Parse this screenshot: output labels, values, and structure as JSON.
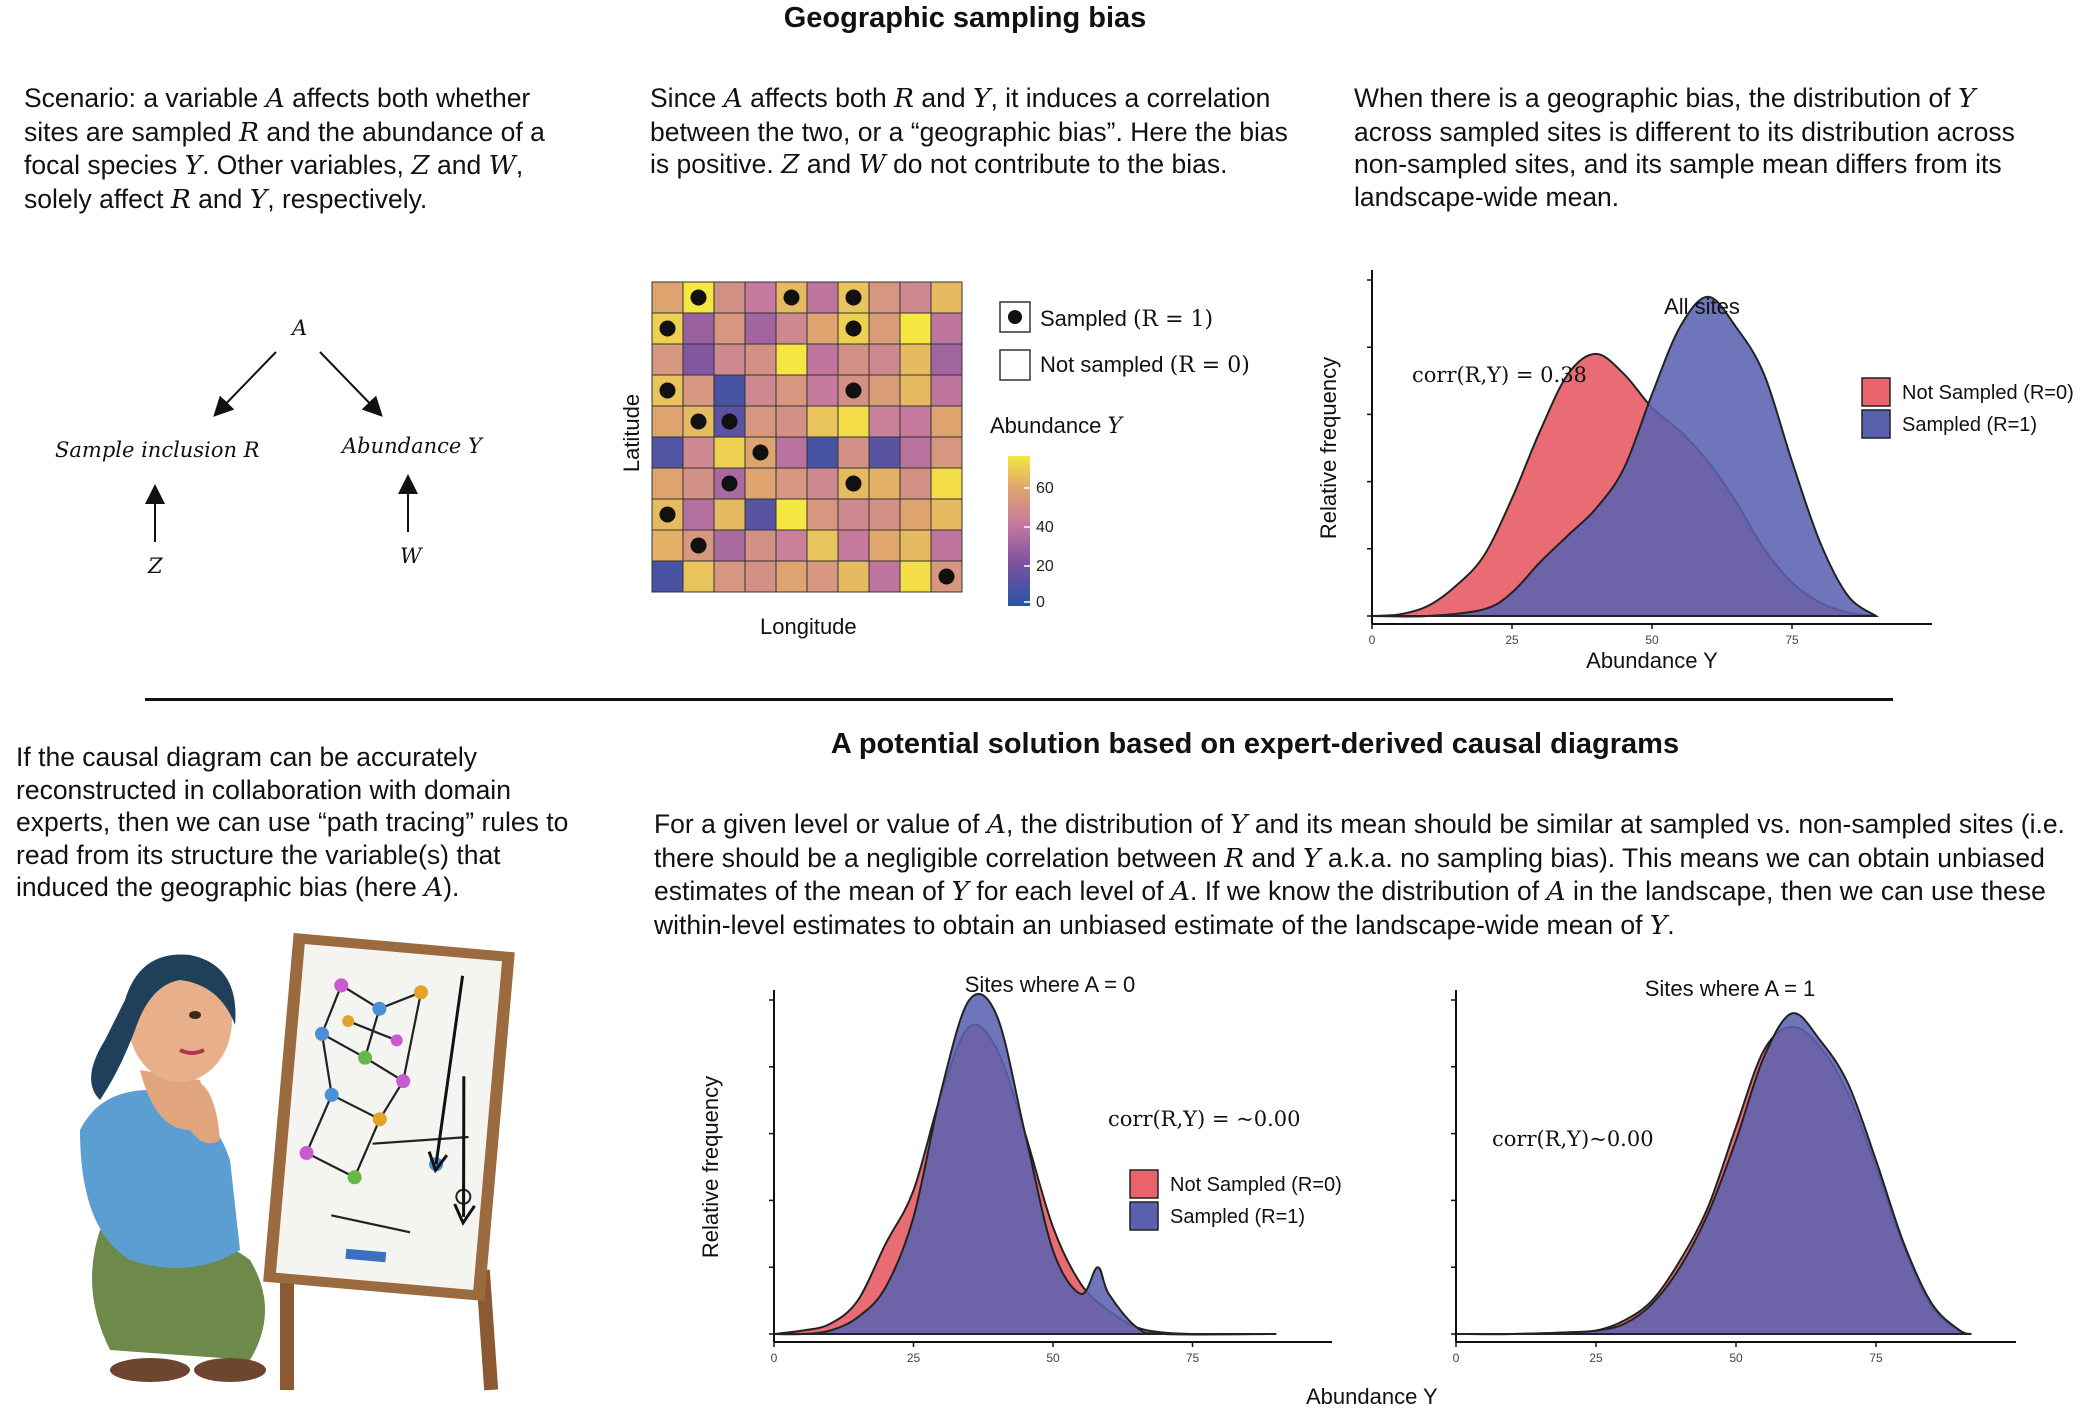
{
  "title": "Geographic sampling bias",
  "text_top_left_parts": [
    "Scenario: a variable ",
    "A",
    " affects both whether sites are sampled ",
    "R",
    " and the abundance of a focal species ",
    "Y",
    ". Other variables, ",
    "Z",
    " and ",
    "W",
    ", solely affect ",
    "R",
    " and ",
    "Y",
    ", respectively."
  ],
  "text_top_middle_parts": [
    "Since ",
    "A",
    " affects both ",
    "R",
    " and ",
    "Y",
    ", it induces a correlation between the two, or a “geographic bias”. Here the bias is positive. ",
    "Z",
    " and ",
    "W",
    " do not contribute to the bias."
  ],
  "text_top_right_parts": [
    "When there is a geographic bias, the distribution of ",
    "Y",
    " across sampled sites is different to its distribution across non-sampled sites, and its sample mean differs from its landscape-wide mean."
  ],
  "dag": {
    "node_a": "A",
    "node_r": "Sample inclusion R",
    "node_y": "Abundance Y",
    "node_z": "Z",
    "node_w": "W"
  },
  "grid_map": {
    "xlabel": "Longitude",
    "ylabel": "Latitude",
    "legend_sampled": "Sampled (R = 1)",
    "legend_not_sampled": "Not sampled (R = 0)",
    "colorbar_title": "Abundance Y",
    "colorbar_ticks": [
      "60",
      "40",
      "20",
      "0"
    ],
    "colors": [
      "#d9aa72",
      "#f2e23e",
      "#dca273",
      "#cc8f88",
      "#e8b05f",
      "#d9aa72",
      "#e3ba62",
      "#f2d655",
      "#e3ae6e",
      "#d9aa72"
    ],
    "cells": [
      [
        55,
        72,
        48,
        40,
        60,
        38,
        62,
        50,
        45,
        60
      ],
      [
        65,
        28,
        50,
        30,
        45,
        55,
        65,
        52,
        70,
        38
      ],
      [
        50,
        22,
        45,
        48,
        72,
        38,
        48,
        45,
        60,
        30
      ],
      [
        62,
        50,
        8,
        45,
        50,
        40,
        48,
        52,
        60,
        38
      ],
      [
        55,
        60,
        12,
        50,
        48,
        62,
        68,
        42,
        40,
        55
      ],
      [
        10,
        45,
        65,
        55,
        36,
        8,
        48,
        12,
        36,
        50
      ],
      [
        55,
        48,
        32,
        55,
        50,
        45,
        60,
        58,
        48,
        68
      ],
      [
        60,
        35,
        60,
        12,
        70,
        50,
        45,
        48,
        55,
        60
      ],
      [
        58,
        50,
        32,
        48,
        42,
        62,
        40,
        56,
        60,
        38
      ],
      [
        8,
        62,
        50,
        48,
        55,
        50,
        60,
        38,
        68,
        50
      ]
    ],
    "sampled": [
      [
        0,
        1
      ],
      [
        0,
        4
      ],
      [
        0,
        6
      ],
      [
        1,
        0
      ],
      [
        1,
        6
      ],
      [
        3,
        0
      ],
      [
        3,
        6
      ],
      [
        4,
        1
      ],
      [
        4,
        2
      ],
      [
        5,
        3
      ],
      [
        6,
        2
      ],
      [
        6,
        6
      ],
      [
        7,
        0
      ],
      [
        8,
        1
      ],
      [
        9,
        9
      ]
    ]
  },
  "divider_title": "A potential solution based on expert-derived causal diagrams",
  "text_bottom_left_parts": [
    "If the causal diagram can be accurately reconstructed in collaboration with domain experts, then we can use “path tracing” rules to read from its structure the variable(s) that induced the geographic bias (here ",
    "A",
    ")."
  ],
  "text_bottom_right_parts": [
    "For a given level or value of ",
    "A",
    ", the distribution of ",
    "Y",
    " and its mean should be similar at sampled vs. non-sampled sites (i.e. there should be a negligible correlation between ",
    "R",
    " and ",
    "Y",
    " a.k.a. no sampling bias). This means we can obtain unbiased estimates of the mean of ",
    "Y",
    " for each level of ",
    "A",
    ". If we know the distribution of ",
    "A",
    " in the landscape, then we can use these within-level estimates to obtain an unbiased estimate of the landscape-wide mean of ",
    "Y",
    "."
  ],
  "chart_data": [
    {
      "type": "area",
      "title": "All sites",
      "annotation": "corr(R,Y) = 0.38",
      "xlabel": "Abundance Y",
      "ylabel": "Relative frequency",
      "xlim": [
        0,
        100
      ],
      "ylim": [
        0,
        1
      ],
      "x_ticks": [
        0,
        25,
        50,
        75
      ],
      "legend_position": "right",
      "colors": {
        "not_sampled": "#e8636b",
        "sampled": "#5a62b0"
      },
      "series": [
        {
          "name": "Not Sampled (R=0)",
          "x": [
            0,
            5,
            10,
            15,
            20,
            25,
            30,
            35,
            40,
            45,
            50,
            55,
            60,
            65,
            70,
            75,
            80,
            85,
            90
          ],
          "y": [
            0,
            0.005,
            0.03,
            0.09,
            0.18,
            0.35,
            0.55,
            0.72,
            0.78,
            0.72,
            0.62,
            0.55,
            0.46,
            0.34,
            0.2,
            0.1,
            0.04,
            0.01,
            0
          ]
        },
        {
          "name": "Sampled (R=1)",
          "x": [
            0,
            10,
            20,
            25,
            30,
            35,
            40,
            45,
            50,
            55,
            60,
            65,
            70,
            75,
            80,
            85,
            90
          ],
          "y": [
            0,
            0,
            0.02,
            0.07,
            0.16,
            0.24,
            0.32,
            0.44,
            0.66,
            0.86,
            0.95,
            0.86,
            0.72,
            0.46,
            0.22,
            0.06,
            0
          ]
        }
      ]
    },
    {
      "type": "area",
      "title": "Sites where A = 0",
      "annotation": "corr(R,Y) = ~0.00",
      "xlabel": "Abundance Y",
      "ylabel": "Relative frequency",
      "xlim": [
        0,
        100
      ],
      "ylim": [
        0,
        1
      ],
      "x_ticks": [
        0,
        25,
        50,
        75
      ],
      "legend_position": "right",
      "colors": {
        "not_sampled": "#e8636b",
        "sampled": "#5a62b0"
      },
      "series": [
        {
          "name": "Not Sampled (R=0)",
          "x": [
            0,
            5,
            10,
            15,
            20,
            25,
            30,
            35,
            40,
            45,
            50,
            55,
            60,
            65,
            70,
            75,
            80,
            90
          ],
          "y": [
            0,
            0.01,
            0.03,
            0.1,
            0.27,
            0.43,
            0.72,
            0.92,
            0.85,
            0.6,
            0.32,
            0.15,
            0.07,
            0.02,
            0.004,
            0,
            0,
            0
          ]
        },
        {
          "name": "Sampled (R=1)",
          "x": [
            0,
            5,
            10,
            15,
            20,
            25,
            30,
            35,
            40,
            45,
            50,
            55,
            58,
            60,
            65,
            70,
            90
          ],
          "y": [
            0,
            0,
            0.01,
            0.05,
            0.14,
            0.35,
            0.73,
            1.0,
            0.95,
            0.6,
            0.25,
            0.12,
            0.2,
            0.12,
            0.02,
            0,
            0
          ]
        }
      ]
    },
    {
      "type": "area",
      "title": "Sites where A = 1",
      "annotation": "corr(R,Y)~0.00",
      "xlabel": "",
      "ylabel": "",
      "xlim": [
        0,
        100
      ],
      "ylim": [
        0,
        1
      ],
      "x_ticks": [
        0,
        25,
        50,
        75
      ],
      "colors": {
        "not_sampled": "#e8636b",
        "sampled": "#5a62b0"
      },
      "series": [
        {
          "name": "Not Sampled (R=0)",
          "x": [
            0,
            10,
            20,
            25,
            30,
            35,
            40,
            45,
            50,
            55,
            60,
            65,
            70,
            75,
            80,
            85,
            90,
            92
          ],
          "y": [
            0,
            0,
            0.005,
            0.01,
            0.04,
            0.1,
            0.22,
            0.38,
            0.62,
            0.85,
            0.92,
            0.86,
            0.72,
            0.5,
            0.26,
            0.08,
            0.01,
            0
          ]
        },
        {
          "name": "Sampled (R=1)",
          "x": [
            0,
            10,
            20,
            25,
            30,
            35,
            40,
            45,
            50,
            55,
            60,
            65,
            70,
            75,
            80,
            85,
            90,
            92
          ],
          "y": [
            0,
            0,
            0.005,
            0.01,
            0.03,
            0.09,
            0.2,
            0.36,
            0.58,
            0.83,
            0.96,
            0.88,
            0.75,
            0.52,
            0.27,
            0.09,
            0.01,
            0
          ]
        }
      ]
    }
  ]
}
